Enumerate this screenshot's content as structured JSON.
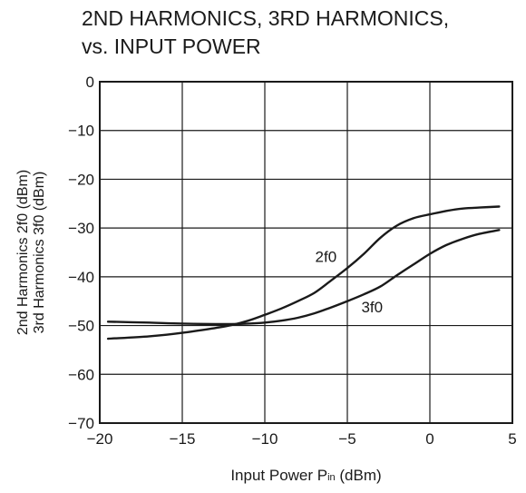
{
  "chart_data": {
    "type": "line",
    "title_lines": [
      "2ND HARMONICS, 3RD HARMONICS,",
      "vs. INPUT POWER"
    ],
    "xlabel": "Input Power  P",
    "xlabel_sub": "in",
    "xlabel_unit": " (dBm)",
    "ylabel_lines": [
      "2nd Harmonics  2f0 (dBm)",
      "3rd Harmonics  3f0 (dBm)"
    ],
    "xlim": [
      -20,
      5
    ],
    "ylim": [
      -70,
      0
    ],
    "xticks": [
      -20,
      -15,
      -10,
      -5,
      0,
      5
    ],
    "xtick_labels": [
      "−20",
      "−15",
      "−10",
      "−5",
      "0",
      "5"
    ],
    "yticks": [
      0,
      -10,
      -20,
      -30,
      -40,
      -50,
      -60,
      -70
    ],
    "ytick_labels": [
      "0",
      "−10",
      "−20",
      "−30",
      "−40",
      "−50",
      "−60",
      "−70"
    ],
    "grid": true,
    "series": [
      {
        "name": "2f0",
        "x": [
          -19.5,
          -17,
          -15,
          -13,
          -12,
          -11,
          -10,
          -9,
          -8,
          -7,
          -6,
          -5,
          -4,
          -3,
          -2,
          -1,
          0,
          1,
          2,
          3,
          4.2
        ],
        "y": [
          -52.7,
          -52.2,
          -51.5,
          -50.5,
          -49.9,
          -49.0,
          -47.8,
          -46.5,
          -45.0,
          -43.3,
          -40.8,
          -38.2,
          -35.3,
          -32.0,
          -29.5,
          -28.0,
          -27.2,
          -26.5,
          -26.0,
          -25.8,
          -25.6
        ]
      },
      {
        "name": "3f0",
        "x": [
          -19.5,
          -17,
          -15,
          -13,
          -12,
          -11,
          -10,
          -9,
          -8,
          -7,
          -6,
          -5,
          -4,
          -3,
          -2,
          -1,
          0,
          1,
          2,
          3,
          4.2
        ],
        "y": [
          -49.2,
          -49.4,
          -49.6,
          -49.7,
          -49.7,
          -49.6,
          -49.4,
          -49.0,
          -48.4,
          -47.5,
          -46.3,
          -45.0,
          -43.6,
          -42.0,
          -39.7,
          -37.5,
          -35.3,
          -33.5,
          -32.2,
          -31.2,
          -30.4
        ]
      }
    ],
    "annotations": [
      {
        "text": "2f0",
        "x": -6.3,
        "y": -37
      },
      {
        "text": "3f0",
        "x": -3.5,
        "y": -47.3
      }
    ]
  }
}
